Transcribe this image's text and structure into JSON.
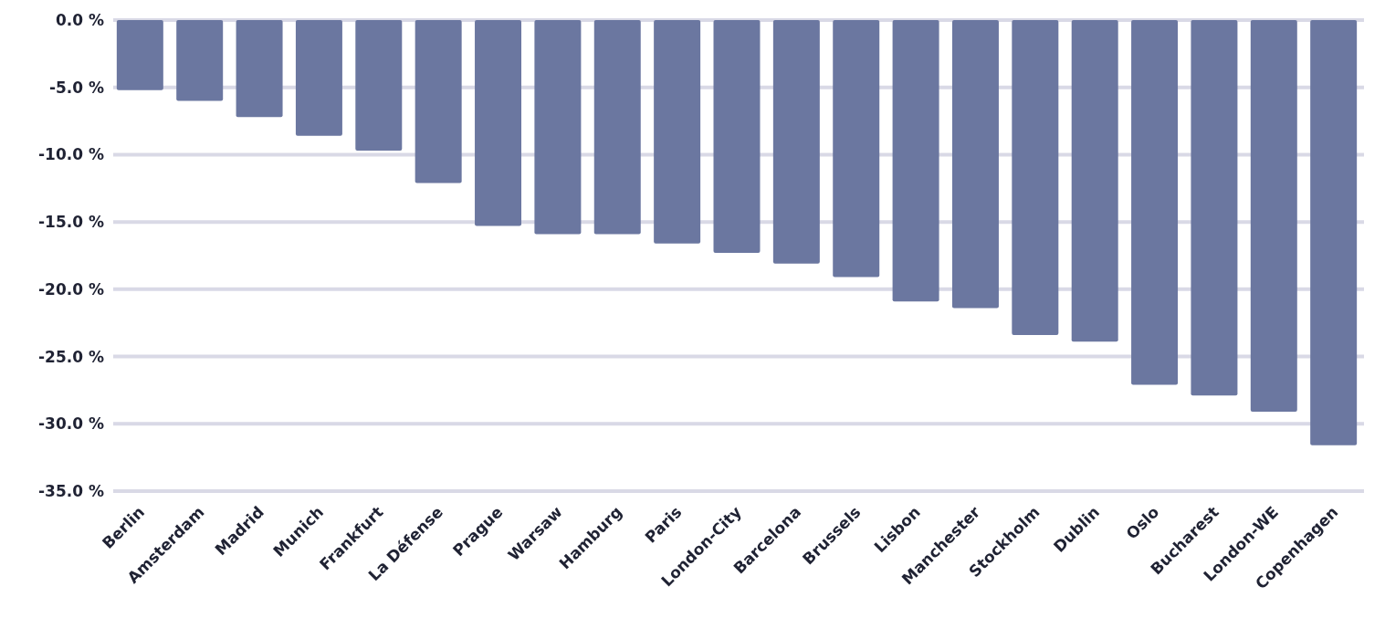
{
  "chart_data": {
    "type": "bar",
    "categories": [
      "Berlin",
      "Amsterdam",
      "Madrid",
      "Munich",
      "Frankfurt",
      "La Défense",
      "Prague",
      "Warsaw",
      "Hamburg",
      "Paris",
      "London-City",
      "Barcelona",
      "Brussels",
      "Lisbon",
      "Manchester",
      "Stockholm",
      "Dublin",
      "Oslo",
      "Bucharest",
      "London-WE",
      "Copenhagen"
    ],
    "values": [
      -5.2,
      -6.0,
      -7.2,
      -8.6,
      -9.7,
      -12.1,
      -15.3,
      -15.9,
      -15.9,
      -16.6,
      -17.3,
      -18.1,
      -19.1,
      -20.9,
      -21.4,
      -23.4,
      -23.9,
      -27.1,
      -27.9,
      -29.1,
      -31.6
    ],
    "color": "#6b77a0",
    "ylim": [
      -35,
      0
    ],
    "yticks": [
      {
        "value": 0,
        "label": "0.0 %"
      },
      {
        "value": -5,
        "label": "-5.0 %"
      },
      {
        "value": -10,
        "label": "-10.0 %"
      },
      {
        "value": -15,
        "label": "-15.0 %"
      },
      {
        "value": -20,
        "label": "-20.0 %"
      },
      {
        "value": -25,
        "label": "-25.0 %"
      },
      {
        "value": -30,
        "label": "-30.0 %"
      },
      {
        "value": -35,
        "label": "-35.0 %"
      }
    ],
    "grid": "y"
  }
}
